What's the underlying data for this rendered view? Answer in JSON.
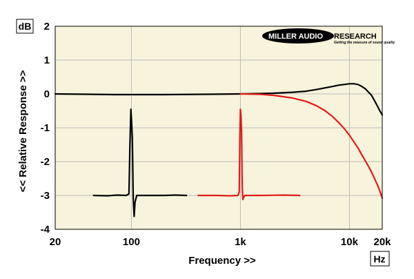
{
  "chart_data": {
    "type": "line",
    "xlabel": "Frequency >>",
    "ylabel": "<< Relative Response >>",
    "y_unit": "dB",
    "x_unit": "Hz",
    "x_scale": "log",
    "xlim": [
      20,
      20000
    ],
    "ylim": [
      -4,
      2
    ],
    "x_ticks": [
      {
        "value": 20,
        "label": "20"
      },
      {
        "value": 100,
        "label": "100"
      },
      {
        "value": 1000,
        "label": "1k"
      },
      {
        "value": 10000,
        "label": "10k"
      },
      {
        "value": 20000,
        "label": "20k"
      }
    ],
    "y_ticks": [
      {
        "value": 2,
        "label": "2"
      },
      {
        "value": 1,
        "label": "1"
      },
      {
        "value": 0,
        "label": "0"
      },
      {
        "value": -1,
        "label": "-1"
      },
      {
        "value": -2,
        "label": "-2"
      },
      {
        "value": -3,
        "label": "-3"
      },
      {
        "value": -4,
        "label": "-4"
      }
    ],
    "grid": true,
    "background_color": "#f7f3dc",
    "series": [
      {
        "color": "#000000",
        "segments": [
          [
            [
              20,
              0
            ],
            [
              40,
              -0.01
            ],
            [
              70,
              -0.02
            ],
            [
              100,
              -0.02
            ],
            [
              200,
              -0.02
            ],
            [
              500,
              -0.01
            ],
            [
              1000,
              0
            ],
            [
              2000,
              0.02
            ],
            [
              3000,
              0.05
            ],
            [
              4000,
              0.08
            ],
            [
              5000,
              0.13
            ],
            [
              6000,
              0.18
            ],
            [
              7000,
              0.22
            ],
            [
              8000,
              0.26
            ],
            [
              9000,
              0.28
            ],
            [
              10000,
              0.3
            ],
            [
              11000,
              0.3
            ],
            [
              12000,
              0.28
            ],
            [
              13000,
              0.22
            ],
            [
              14000,
              0.15
            ],
            [
              15000,
              0.05
            ],
            [
              16000,
              -0.05
            ],
            [
              17000,
              -0.2
            ],
            [
              18000,
              -0.35
            ],
            [
              19000,
              -0.5
            ],
            [
              20000,
              -0.62
            ]
          ],
          [
            [
              45,
              -3
            ],
            [
              60,
              -3.01
            ],
            [
              75,
              -2.99
            ],
            [
              90,
              -3
            ],
            [
              95,
              -2.95
            ],
            [
              97,
              -1.5
            ],
            [
              99,
              -0.45
            ],
            [
              100,
              -0.7
            ],
            [
              102,
              -1.3
            ],
            [
              104,
              -3.1
            ],
            [
              106,
              -3.62
            ],
            [
              108,
              -3.2
            ],
            [
              112,
              -3
            ],
            [
              140,
              -3
            ],
            [
              200,
              -3
            ],
            [
              250,
              -2.99
            ],
            [
              320,
              -3
            ]
          ]
        ]
      },
      {
        "color": "#e11a1a",
        "segments": [
          [
            [
              1000,
              0
            ],
            [
              1500,
              -0.01
            ],
            [
              2000,
              -0.04
            ],
            [
              3000,
              -0.12
            ],
            [
              4000,
              -0.22
            ],
            [
              5000,
              -0.35
            ],
            [
              6000,
              -0.5
            ],
            [
              7000,
              -0.67
            ],
            [
              8000,
              -0.85
            ],
            [
              9000,
              -1.03
            ],
            [
              10000,
              -1.22
            ],
            [
              11000,
              -1.42
            ],
            [
              12000,
              -1.6
            ],
            [
              13000,
              -1.8
            ],
            [
              14000,
              -1.98
            ],
            [
              15000,
              -2.15
            ],
            [
              16000,
              -2.32
            ],
            [
              17000,
              -2.5
            ],
            [
              18000,
              -2.68
            ],
            [
              19000,
              -2.87
            ],
            [
              20000,
              -3.08
            ]
          ],
          [
            [
              410,
              -3
            ],
            [
              600,
              -3
            ],
            [
              800,
              -3.01
            ],
            [
              950,
              -3
            ],
            [
              975,
              -2.9
            ],
            [
              990,
              -1.2
            ],
            [
              1000,
              -0.45
            ],
            [
              1010,
              -0.6
            ],
            [
              1025,
              -1.1
            ],
            [
              1040,
              -2.8
            ],
            [
              1055,
              -3.12
            ],
            [
              1070,
              -3.05
            ],
            [
              1100,
              -3
            ],
            [
              1500,
              -3
            ],
            [
              2500,
              -2.99
            ],
            [
              3500,
              -3
            ]
          ]
        ]
      }
    ]
  },
  "branding": {
    "logo_text_left": "MILLER AUDIO",
    "logo_text_right": "RESEARCH",
    "tagline": "Getting the measure of sound quality"
  }
}
